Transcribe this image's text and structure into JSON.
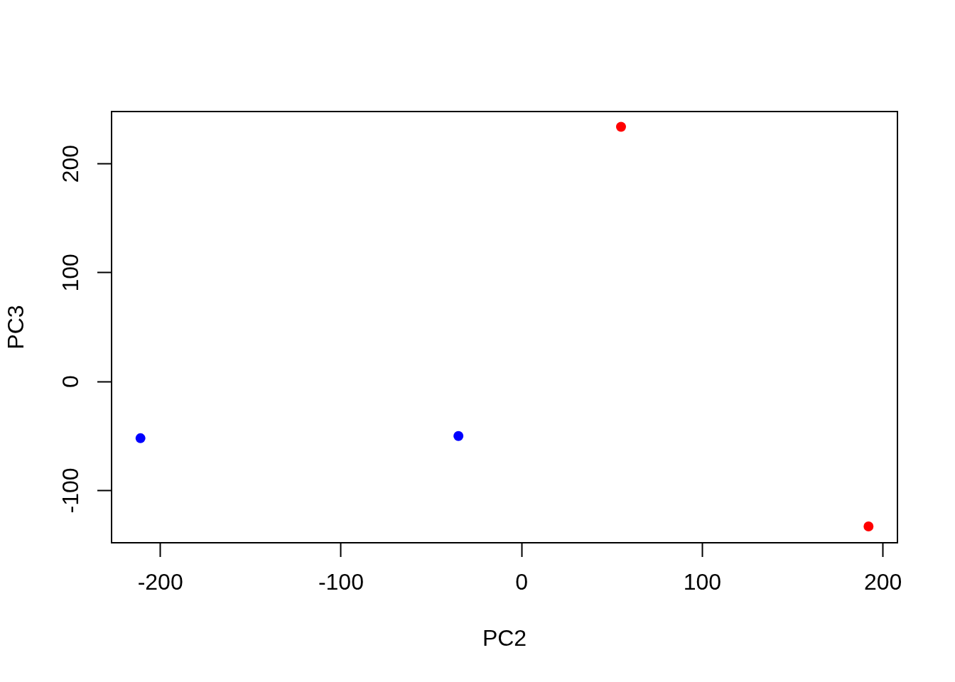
{
  "chart_data": {
    "type": "scatter",
    "xlabel": "PC2",
    "ylabel": "PC3",
    "series": [
      {
        "color": "#0000ff",
        "x": [
          -211,
          -35
        ],
        "values": [
          -52,
          -50
        ]
      },
      {
        "color": "#ff0000",
        "x": [
          55,
          192
        ],
        "values": [
          234,
          -133
        ]
      }
    ],
    "xlim": [
      -227,
      208
    ],
    "ylim": [
      -148,
      248
    ],
    "xticks": [
      -200,
      -100,
      0,
      100,
      200
    ],
    "yticks": [
      -100,
      0,
      100,
      200
    ],
    "grid": false,
    "legend": false,
    "marker": "circle"
  }
}
